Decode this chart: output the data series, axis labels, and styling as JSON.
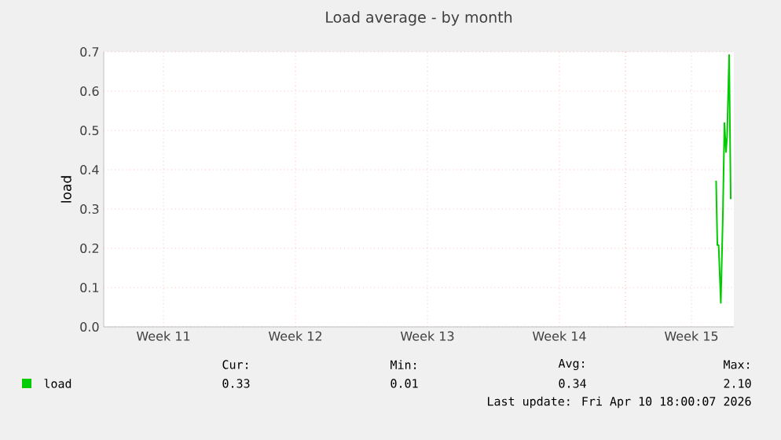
{
  "chart_data": {
    "type": "line",
    "title": "Load average - by month",
    "ylabel": "load",
    "xlim": [
      "2026-03-08T08:00",
      "2026-04-10T18:00"
    ],
    "ylim": [
      0,
      0.7
    ],
    "xticks": [
      {
        "value": "2026-03-11T12:00",
        "label": "Week 11"
      },
      {
        "value": "2026-03-18T12:00",
        "label": "Week 12"
      },
      {
        "value": "2026-03-25T12:00",
        "label": "Week 13"
      },
      {
        "value": "2026-04-01T12:00",
        "label": "Week 14"
      },
      {
        "value": "2026-04-08T12:00",
        "label": "Week 15"
      }
    ],
    "yticks": [
      {
        "value": 0,
        "label": "0.0"
      },
      0.1,
      0.2,
      0.3,
      0.4,
      0.5,
      0.6,
      0.7
    ],
    "grid": true,
    "legend": "bottom",
    "marker": "none",
    "line_style": "solid",
    "ref_lines": [
      {
        "axis": "x",
        "value": "2026-04-05",
        "color": "#ff6666",
        "line_style": "dotted"
      }
    ],
    "series": [
      {
        "name": "load",
        "color": "#00cc00",
        "x": [
          "2026-04-09T19:24",
          "2026-04-09T21:00",
          "2026-04-09T22:36",
          "2026-04-10T01:24",
          "2026-04-10T04:00",
          "2026-04-10T06:00",
          "2026-04-10T08:00",
          "2026-04-10T09:24",
          "2026-04-10T12:00",
          "2026-04-10T14:00"
        ],
        "values": [
          0.372,
          0.208,
          0.208,
          0.061,
          0.285,
          0.519,
          0.445,
          0.485,
          0.692,
          0.325
        ]
      }
    ],
    "annotations": [
      "Cur:",
      "0.33",
      "Min:",
      "0.01",
      "Avg:",
      "0.34",
      "Max:",
      "2.10",
      "Last update: Fri Apr 10 18:00:07 2026"
    ]
  }
}
